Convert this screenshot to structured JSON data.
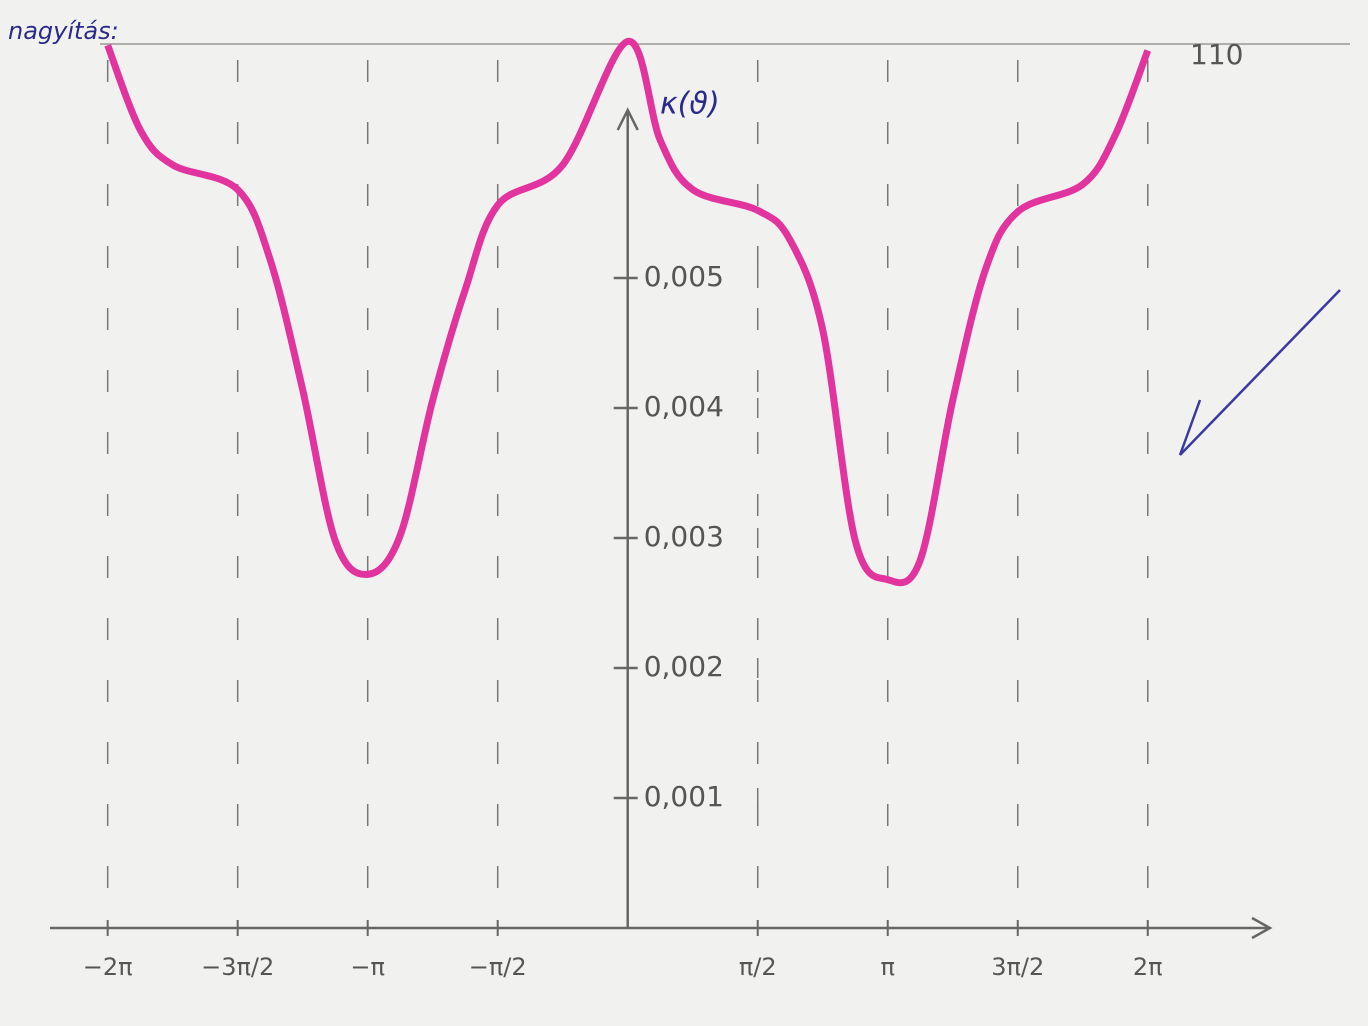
{
  "chart_data": {
    "type": "line",
    "annotation": "nagyítás:",
    "ylabel": "κ(ϑ)",
    "top_note": "110",
    "x": [
      -6.2832,
      -5.8905,
      -5.4978,
      -4.7124,
      -4.3197,
      -3.927,
      -3.5343,
      -3.1416,
      -2.7489,
      -2.3562,
      -1.9635,
      -1.5708,
      -0.7854,
      0,
      0.3927,
      0.7854,
      1.5708,
      1.9635,
      2.3562,
      2.7489,
      3.1416,
      3.5343,
      3.927,
      4.3197,
      4.7124,
      5.4978,
      5.8905,
      6.2832
    ],
    "series": [
      {
        "name": "κ(ϑ)",
        "color": "#e2349f",
        "values": [
          0.00679,
          0.00614,
          0.00587,
          0.00568,
          0.00514,
          0.00414,
          0.00298,
          0.00272,
          0.00302,
          0.00406,
          0.00491,
          0.00556,
          0.00587,
          0.00682,
          0.00606,
          0.00568,
          0.00552,
          0.00529,
          0.0046,
          0.00298,
          0.00268,
          0.00283,
          0.00406,
          0.00506,
          0.00551,
          0.00572,
          0.0061,
          0.00675
        ]
      }
    ],
    "xlim": [
      -6.98,
      7.76
    ],
    "ylim": [
      0,
      0.0069
    ],
    "xticks": [
      {
        "value": -6.2832,
        "label": "−2π"
      },
      {
        "value": -4.7124,
        "label": "−3π/2"
      },
      {
        "value": -3.1416,
        "label": "−π"
      },
      {
        "value": -1.5708,
        "label": "−π/2"
      },
      {
        "value": 1.5708,
        "label": "π/2"
      },
      {
        "value": 3.1416,
        "label": "π"
      },
      {
        "value": 4.7124,
        "label": "3π/2"
      },
      {
        "value": 6.2832,
        "label": "2π"
      }
    ],
    "yticks": [
      {
        "value": 0.001,
        "label": "0,001"
      },
      {
        "value": 0.002,
        "label": "0,002"
      },
      {
        "value": 0.003,
        "label": "0,003"
      },
      {
        "value": 0.004,
        "label": "0,004"
      },
      {
        "value": 0.005,
        "label": "0,005"
      }
    ],
    "grid": true
  }
}
